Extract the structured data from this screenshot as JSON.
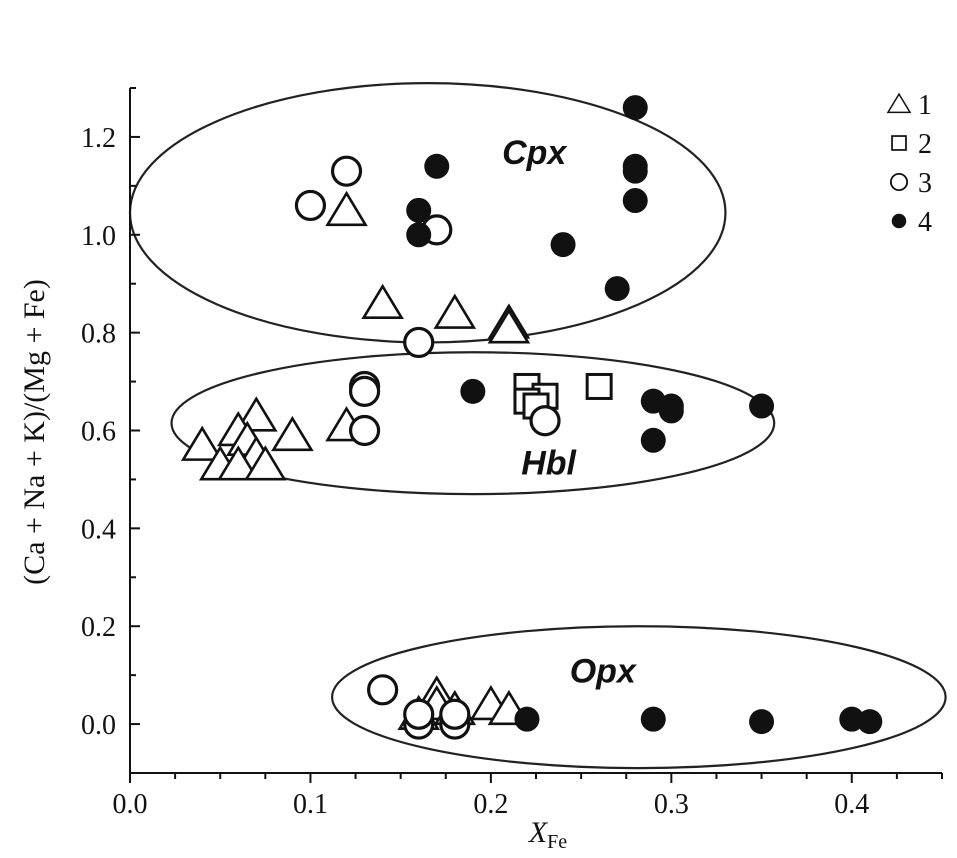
{
  "chart_data": {
    "type": "scatter",
    "title": "",
    "xlabel": "X",
    "xlabel_sub": "Fe",
    "ylabel": "(Ca + Na + K)/(Mg + Fe)",
    "xlim": [
      0.0,
      0.45
    ],
    "ylim": [
      -0.1,
      1.3
    ],
    "x_ticks": [
      "0.0",
      "0.1",
      "0.2",
      "0.3",
      "0.4"
    ],
    "x_tick_values": [
      0.0,
      0.1,
      0.2,
      0.3,
      0.4
    ],
    "y_ticks": [
      "0.0",
      "0.2",
      "0.4",
      "0.6",
      "0.8",
      "1.0",
      "1.2"
    ],
    "y_tick_values": [
      0.0,
      0.2,
      0.4,
      0.6,
      0.8,
      1.0,
      1.2
    ],
    "grid": false,
    "legend_position": "top-right",
    "regions": [
      {
        "label": "Cpx",
        "cx": 0.165,
        "cy": 1.045,
        "rx": 0.165,
        "ry": 0.265,
        "label_x": 0.224,
        "label_y": 1.145
      },
      {
        "label": "Hbl",
        "cx": 0.19,
        "cy": 0.615,
        "rx": 0.167,
        "ry": 0.145,
        "label_x": 0.232,
        "label_y": 0.51
      },
      {
        "label": "Opx",
        "cx": 0.282,
        "cy": 0.055,
        "rx": 0.17,
        "ry": 0.145,
        "label_x": 0.262,
        "label_y": 0.085
      }
    ],
    "series": [
      {
        "name": "1",
        "marker": "triangle",
        "points": [
          [
            0.12,
            1.05
          ],
          [
            0.14,
            0.86
          ],
          [
            0.18,
            0.84
          ],
          [
            0.21,
            0.82
          ],
          [
            0.21,
            0.81
          ],
          [
            0.12,
            0.61
          ],
          [
            0.07,
            0.63
          ],
          [
            0.09,
            0.59
          ],
          [
            0.06,
            0.6
          ],
          [
            0.065,
            0.58
          ],
          [
            0.04,
            0.57
          ],
          [
            0.07,
            0.55
          ],
          [
            0.05,
            0.53
          ],
          [
            0.06,
            0.53
          ],
          [
            0.075,
            0.53
          ],
          [
            0.17,
            0.06
          ],
          [
            0.17,
            0.04
          ],
          [
            0.18,
            0.03
          ],
          [
            0.2,
            0.04
          ],
          [
            0.21,
            0.03
          ],
          [
            0.16,
            0.02
          ]
        ]
      },
      {
        "name": "2",
        "marker": "square",
        "points": [
          [
            0.22,
            0.69
          ],
          [
            0.23,
            0.67
          ],
          [
            0.26,
            0.69
          ],
          [
            0.22,
            0.66
          ],
          [
            0.225,
            0.65
          ]
        ]
      },
      {
        "name": "3",
        "marker": "open-circle",
        "points": [
          [
            0.12,
            1.13
          ],
          [
            0.1,
            1.06
          ],
          [
            0.17,
            1.01
          ],
          [
            0.16,
            0.78
          ],
          [
            0.13,
            0.69
          ],
          [
            0.13,
            0.68
          ],
          [
            0.13,
            0.6
          ],
          [
            0.23,
            0.62
          ],
          [
            0.14,
            0.07
          ],
          [
            0.16,
            0.0
          ],
          [
            0.16,
            0.02
          ],
          [
            0.18,
            0.0
          ],
          [
            0.18,
            0.02
          ]
        ]
      },
      {
        "name": "4",
        "marker": "filled-circle",
        "points": [
          [
            0.28,
            1.26
          ],
          [
            0.17,
            1.14
          ],
          [
            0.28,
            1.14
          ],
          [
            0.28,
            1.13
          ],
          [
            0.28,
            1.07
          ],
          [
            0.16,
            1.05
          ],
          [
            0.16,
            1.0
          ],
          [
            0.24,
            0.98
          ],
          [
            0.27,
            0.89
          ],
          [
            0.19,
            0.68
          ],
          [
            0.29,
            0.66
          ],
          [
            0.3,
            0.65
          ],
          [
            0.3,
            0.64
          ],
          [
            0.35,
            0.65
          ],
          [
            0.29,
            0.58
          ],
          [
            0.22,
            0.01
          ],
          [
            0.29,
            0.01
          ],
          [
            0.35,
            0.005
          ],
          [
            0.4,
            0.01
          ],
          [
            0.41,
            0.005
          ]
        ]
      }
    ]
  }
}
